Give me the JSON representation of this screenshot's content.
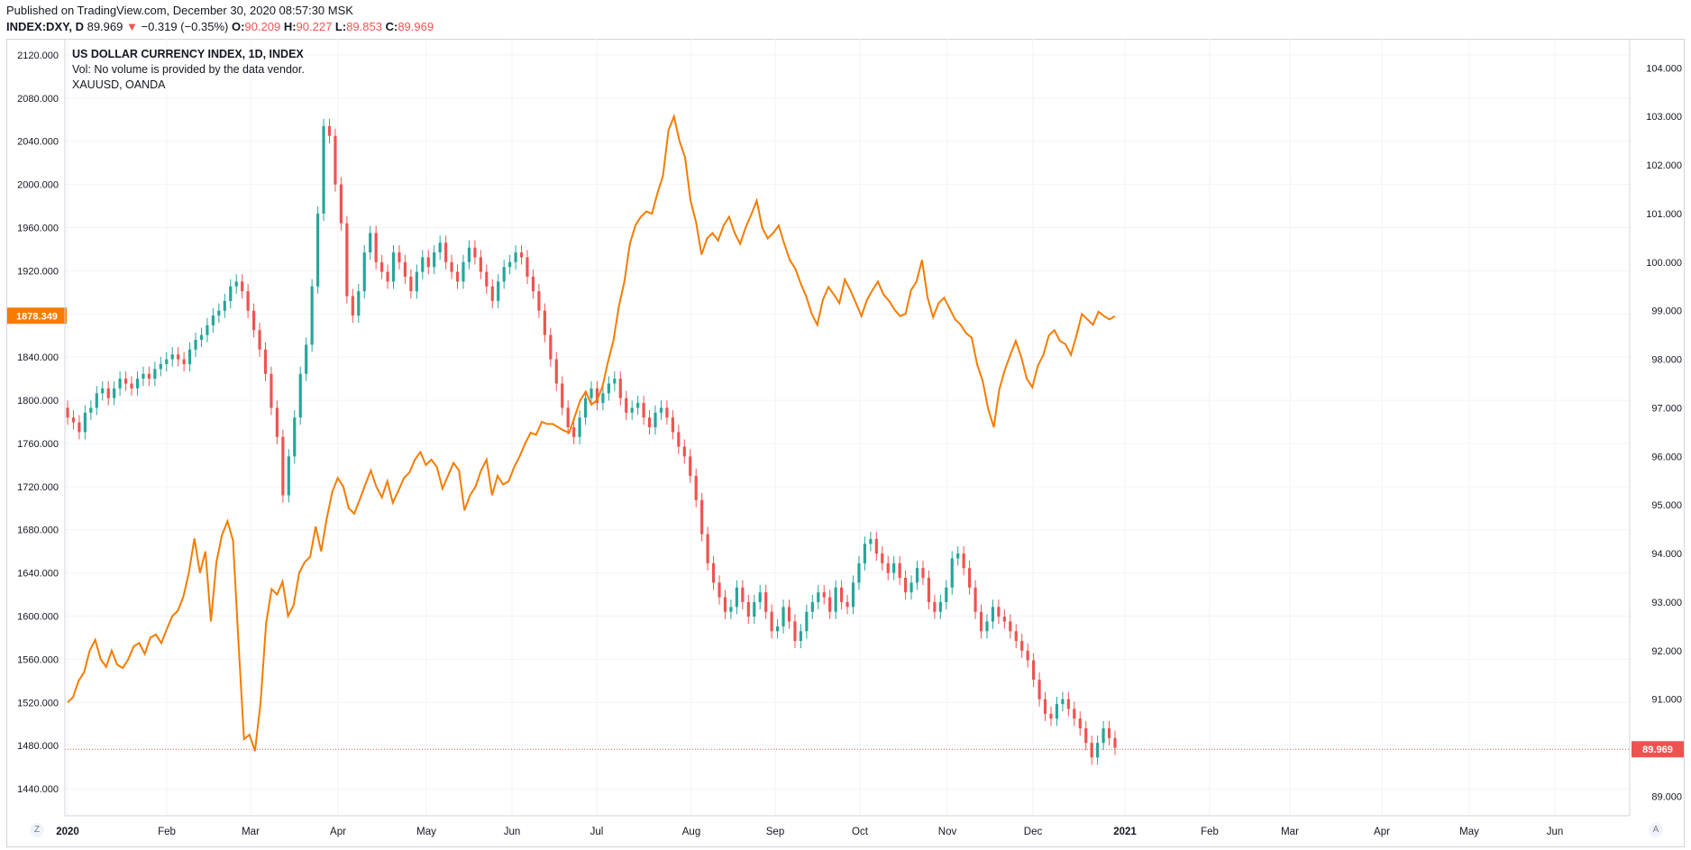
{
  "header": {
    "published": "Published on TradingView.com, December 30, 2020 08:57:30 MSK",
    "symbol": "INDEX:DXY, D",
    "last": "89.969",
    "arrow": "▼",
    "change": "−0.319 (−0.35%)",
    "o_label": "O:",
    "o_val": "90.209",
    "h_label": "H:",
    "h_val": "90.227",
    "l_label": "L:",
    "l_val": "89.853",
    "c_label": "C:",
    "c_val": "89.969"
  },
  "legend": {
    "title": "US DOLLAR CURRENCY INDEX, 1D, INDEX",
    "vol": "Vol: No volume is provided by the data vendor.",
    "overlay": "XAUUSD, OANDA"
  },
  "badges": {
    "gold_last": "1878.349",
    "dxy_last": "89.969"
  },
  "corners": {
    "left": "Z",
    "right": "A"
  },
  "colors": {
    "up": "#26a69a",
    "down": "#ef5350",
    "gold": "#f57c00",
    "grid": "#f0f3fa"
  },
  "chart_data": {
    "type": "candlestick+line",
    "left_axis": {
      "ticks": [
        "2120.000",
        "2080.000",
        "2040.000",
        "2000.000",
        "1960.000",
        "1920.000",
        "1880.000",
        "1840.000",
        "1800.000",
        "1760.000",
        "1720.000",
        "1680.000",
        "1640.000",
        "1600.000",
        "1560.000",
        "1520.000",
        "1480.000",
        "1440.000"
      ],
      "range": [
        1415,
        2135
      ]
    },
    "right_axis": {
      "ticks": [
        "104.000",
        "103.000",
        "102.000",
        "101.000",
        "100.000",
        "99.000",
        "98.000",
        "97.000",
        "96.000",
        "95.000",
        "94.000",
        "93.000",
        "92.000",
        "91.000",
        "90.000",
        "89.000"
      ],
      "range": [
        88.6,
        104.6
      ]
    },
    "x_axis": {
      "labels": [
        "2020",
        "Feb",
        "Mar",
        "Apr",
        "May",
        "Jun",
        "Jul",
        "Aug",
        "Sep",
        "Oct",
        "Nov",
        "Dec",
        "2021",
        "Feb",
        "Mar",
        "Apr",
        "May",
        "Jun"
      ]
    },
    "dxy_close": [
      96.8,
      96.7,
      96.5,
      96.9,
      97.0,
      97.3,
      97.4,
      97.2,
      97.4,
      97.6,
      97.5,
      97.4,
      97.6,
      97.7,
      97.6,
      97.8,
      97.9,
      98.0,
      98.1,
      98.0,
      97.9,
      98.2,
      98.4,
      98.5,
      98.7,
      98.9,
      99.0,
      99.2,
      99.5,
      99.6,
      99.4,
      99.0,
      98.6,
      98.2,
      97.7,
      97.0,
      96.4,
      95.2,
      96.0,
      96.8,
      97.7,
      98.3,
      99.5,
      101.0,
      102.8,
      102.6,
      101.6,
      100.8,
      99.3,
      98.9,
      99.4,
      100.2,
      100.6,
      100.0,
      99.8,
      99.6,
      100.2,
      100.0,
      99.7,
      99.4,
      99.8,
      100.1,
      99.9,
      100.2,
      100.4,
      100.0,
      99.8,
      99.6,
      100.0,
      100.3,
      100.1,
      99.8,
      99.5,
      99.2,
      99.6,
      99.9,
      100.0,
      100.2,
      100.1,
      99.7,
      99.4,
      99.0,
      98.5,
      98.0,
      97.5,
      97.0,
      96.6,
      96.4,
      96.8,
      97.2,
      97.4,
      97.1,
      97.3,
      97.5,
      97.6,
      97.2,
      96.9,
      97.0,
      97.1,
      96.8,
      96.6,
      96.9,
      97.0,
      96.8,
      96.5,
      96.2,
      96.0,
      95.6,
      95.1,
      94.4,
      93.8,
      93.4,
      93.1,
      92.8,
      92.9,
      93.3,
      93.0,
      92.7,
      93.0,
      93.2,
      92.8,
      92.4,
      92.5,
      92.9,
      92.6,
      92.2,
      92.4,
      92.8,
      93.0,
      93.2,
      93.1,
      92.8,
      93.3,
      93.0,
      92.9,
      93.4,
      93.8,
      94.2,
      94.3,
      94.0,
      93.8,
      93.6,
      93.8,
      93.5,
      93.2,
      93.4,
      93.7,
      93.5,
      93.0,
      92.8,
      93.0,
      93.3,
      93.9,
      94.0,
      93.7,
      93.3,
      92.8,
      92.4,
      92.6,
      92.9,
      92.7,
      92.6,
      92.4,
      92.2,
      92.0,
      91.8,
      91.4,
      91.0,
      90.7,
      90.6,
      90.9,
      91.0,
      90.8,
      90.6,
      90.4,
      90.1,
      89.8,
      90.1,
      90.4,
      90.2,
      90.0
    ],
    "xauusd": [
      1520,
      1525,
      1540,
      1548,
      1568,
      1578,
      1560,
      1553,
      1568,
      1555,
      1552,
      1560,
      1572,
      1575,
      1565,
      1580,
      1583,
      1575,
      1588,
      1600,
      1605,
      1618,
      1640,
      1672,
      1640,
      1660,
      1595,
      1650,
      1675,
      1688,
      1670,
      1575,
      1486,
      1490,
      1475,
      1520,
      1593,
      1625,
      1620,
      1632,
      1600,
      1610,
      1640,
      1650,
      1655,
      1683,
      1660,
      1690,
      1715,
      1728,
      1720,
      1700,
      1695,
      1708,
      1722,
      1735,
      1720,
      1710,
      1725,
      1705,
      1716,
      1728,
      1733,
      1745,
      1752,
      1740,
      1745,
      1738,
      1718,
      1730,
      1742,
      1735,
      1698,
      1712,
      1720,
      1735,
      1745,
      1712,
      1730,
      1722,
      1725,
      1738,
      1748,
      1760,
      1770,
      1768,
      1780,
      1778,
      1778,
      1775,
      1772,
      1770,
      1785,
      1800,
      1808,
      1796,
      1800,
      1812,
      1835,
      1855,
      1887,
      1910,
      1945,
      1962,
      1970,
      1975,
      1973,
      1992,
      2008,
      2050,
      2063,
      2040,
      2025,
      1985,
      1965,
      1935,
      1950,
      1955,
      1948,
      1962,
      1970,
      1955,
      1945,
      1960,
      1972,
      1985,
      1960,
      1950,
      1955,
      1962,
      1945,
      1930,
      1922,
      1908,
      1896,
      1880,
      1870,
      1893,
      1905,
      1898,
      1890,
      1912,
      1902,
      1890,
      1878,
      1893,
      1902,
      1910,
      1898,
      1892,
      1884,
      1878,
      1880,
      1902,
      1910,
      1930,
      1895,
      1877,
      1890,
      1895,
      1885,
      1875,
      1870,
      1862,
      1858,
      1833,
      1818,
      1792,
      1775,
      1810,
      1828,
      1842,
      1855,
      1840,
      1820,
      1812,
      1832,
      1842,
      1860,
      1865,
      1855,
      1852,
      1842,
      1860,
      1880,
      1875,
      1870,
      1882,
      1878,
      1875,
      1878
    ]
  }
}
